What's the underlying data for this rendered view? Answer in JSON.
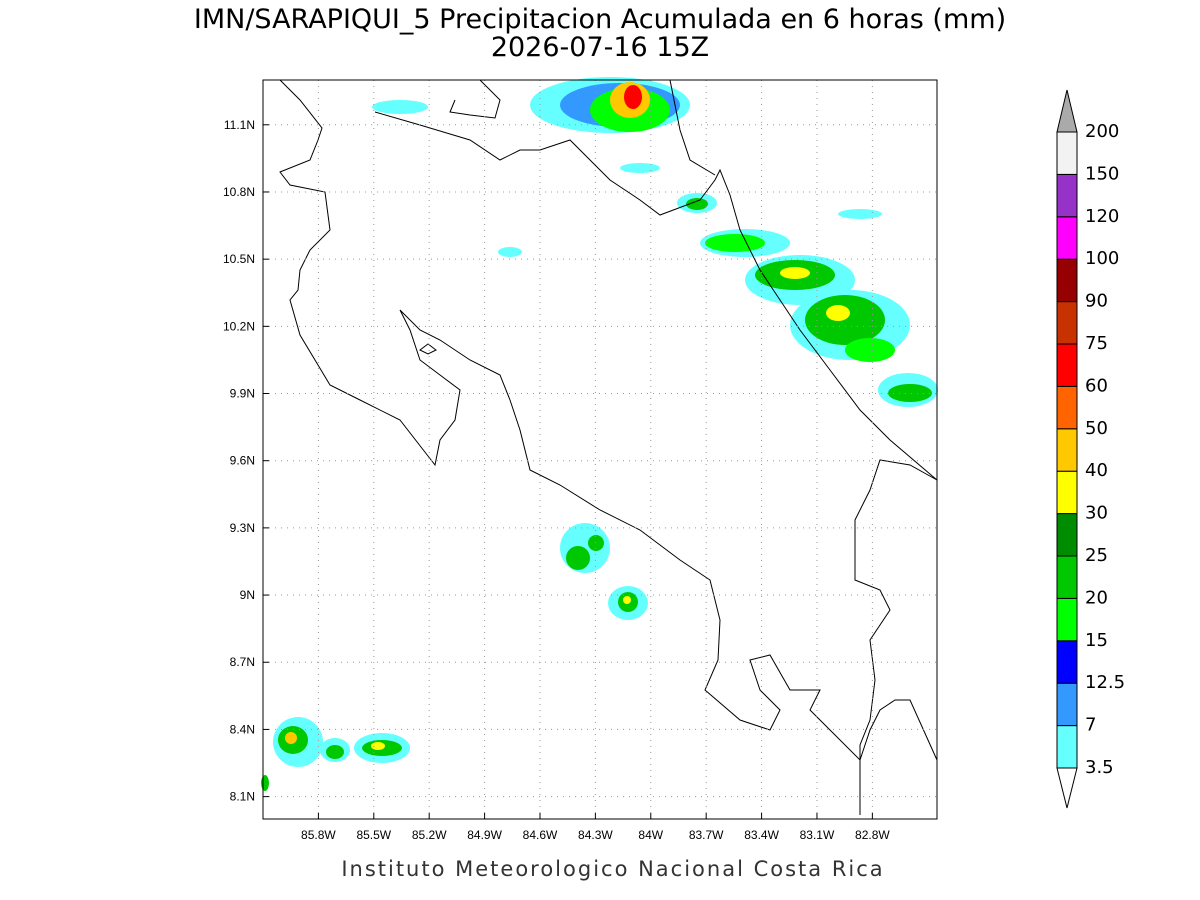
{
  "title": "IMN/SARAPIQUI_5 Precipitacion Acumulada en 6 horas (mm)",
  "subtitle": "2026-07-16 15Z",
  "map": {
    "xlim": [
      -86.1,
      -82.45
    ],
    "ylim": [
      8.0,
      11.3
    ],
    "xticks": [
      {
        "value": -85.8,
        "label": "85.8W"
      },
      {
        "value": -85.5,
        "label": "85.5W"
      },
      {
        "value": -85.2,
        "label": "85.2W"
      },
      {
        "value": -84.9,
        "label": "84.9W"
      },
      {
        "value": -84.6,
        "label": "84.6W"
      },
      {
        "value": -84.3,
        "label": "84.3W"
      },
      {
        "value": -84,
        "label": "84W"
      },
      {
        "value": -83.7,
        "label": "83.7W"
      },
      {
        "value": -83.4,
        "label": "83.4W"
      },
      {
        "value": -83.1,
        "label": "83.1W"
      },
      {
        "value": -82.8,
        "label": "82.8W"
      }
    ],
    "yticks": [
      {
        "value": 8.1,
        "label": "8.1N"
      },
      {
        "value": 8.4,
        "label": "8.4N"
      },
      {
        "value": 8.7,
        "label": "8.7N"
      },
      {
        "value": 9,
        "label": "9N"
      },
      {
        "value": 9.3,
        "label": "9.3N"
      },
      {
        "value": 9.6,
        "label": "9.6N"
      },
      {
        "value": 9.9,
        "label": "9.9N"
      },
      {
        "value": 10.2,
        "label": "10.2N"
      },
      {
        "value": 10.5,
        "label": "10.5N"
      },
      {
        "value": 10.8,
        "label": "10.8N"
      },
      {
        "value": 11.1,
        "label": "11.1N"
      }
    ],
    "grid": true
  },
  "colorbar": {
    "levels": [
      3.5,
      7,
      12.5,
      15,
      20,
      25,
      30,
      40,
      50,
      60,
      75,
      90,
      100,
      120,
      150,
      200
    ],
    "colors": [
      "#66ffff",
      "#3399ff",
      "#0000ff",
      "#00ff00",
      "#00c800",
      "#008c00",
      "#ffff00",
      "#ffc800",
      "#ff6400",
      "#ff0000",
      "#c83200",
      "#960000",
      "#ff00ff",
      "#9632c8",
      "#f2f2f2"
    ],
    "under_color": "#ffffff",
    "over_color": "#aaaaaa"
  },
  "footer": "Instituto Meteorologico Nacional Costa Rica"
}
